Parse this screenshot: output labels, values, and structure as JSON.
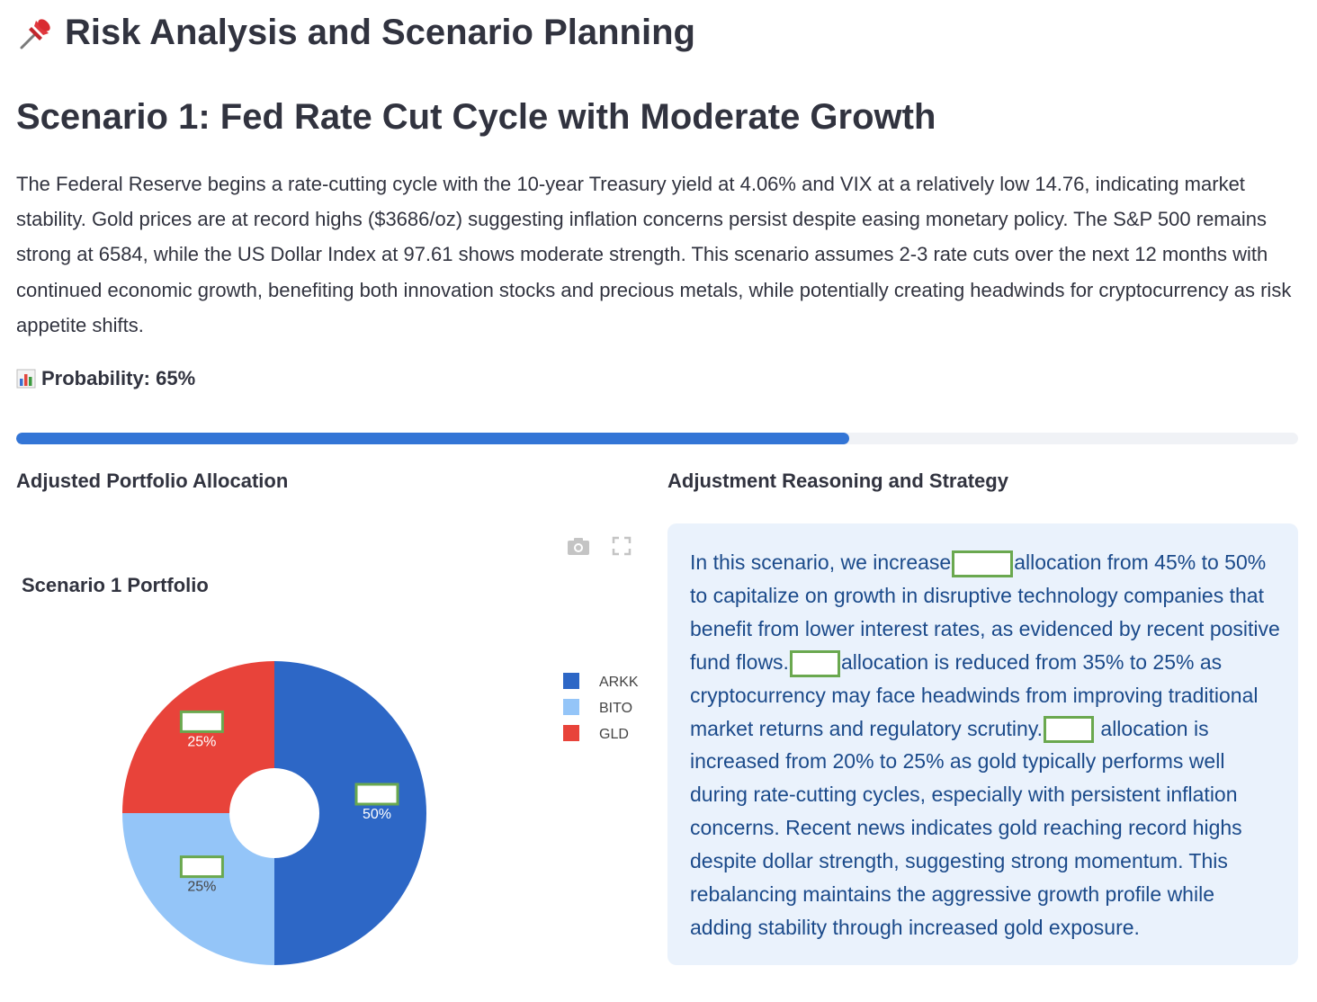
{
  "page": {
    "title": "Risk Analysis and Scenario Planning",
    "title_icon": "pushpin-icon"
  },
  "scenario": {
    "title": "Scenario 1: Fed Rate Cut Cycle with Moderate Growth",
    "description": "The Federal Reserve begins a rate-cutting cycle with the 10-year Treasury yield at 4.06% and VIX at a relatively low 14.76, indicating market stability. Gold prices are at record highs ($3686/oz) suggesting inflation concerns persist despite easing monetary policy. The S&P 500 remains strong at 6584, while the US Dollar Index at 97.61 shows moderate strength. This scenario assumes 2-3 rate cuts over the next 12 months with continued economic growth, benefiting both innovation stocks and precious metals, while potentially creating headwinds for cryptocurrency as risk appetite shifts.",
    "probability_label": "Probability: 65%",
    "probability_icon": "bar-chart-icon",
    "probability_value": 0.65
  },
  "allocation": {
    "heading": "Adjusted Portfolio Allocation",
    "toolbar": {
      "camera_icon": "camera-icon",
      "fullscreen_icon": "fullscreen-icon"
    }
  },
  "strategy": {
    "heading": "Adjustment Reasoning and Strategy",
    "part1": "In this scenario, we increase",
    "part2": "allocation from 45% to 50% to capitalize on growth in disruptive technology companies that benefit from lower interest rates, as evidenced by recent positive fund flows.",
    "part3": "allocation is reduced from 35% to 25% as cryptocurrency may face headwinds from improving traditional market returns and regulatory scrutiny.",
    "part4": "allocation is increased from 20% to 25% as gold typically performs well during rate-cutting cycles, especially with persistent inflation concerns. Recent news indicates gold reaching record highs despite dollar strength, suggesting strong momentum. This rebalancing maintains the aggressive growth profile while adding stability through increased gold exposure."
  },
  "chart_data": {
    "type": "pie",
    "hole": true,
    "title": "Scenario 1 Portfolio",
    "categories": [
      "ARKK",
      "BITO",
      "GLD"
    ],
    "values": [
      50,
      25,
      25
    ],
    "labels": [
      "50%",
      "25%",
      "25%"
    ],
    "colors": [
      "#2d67c6",
      "#94c5f8",
      "#e8433a"
    ],
    "legend_position": "right"
  }
}
